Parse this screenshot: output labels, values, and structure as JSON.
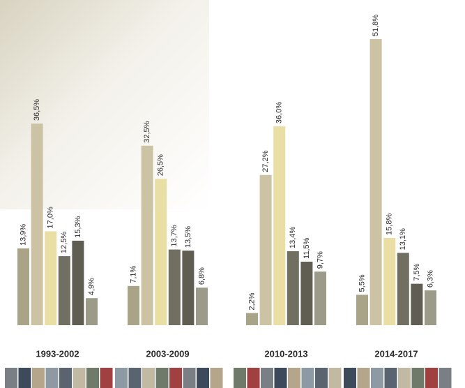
{
  "chart_data": {
    "type": "bar",
    "categories": [
      "1993-2002",
      "2003-2009",
      "2010-2013",
      "2014-2017"
    ],
    "series": [
      {
        "color": "#a9a487",
        "values": [
          13.9,
          7.1,
          2.2,
          5.5
        ],
        "value_labels": [
          "13,9%",
          "7,1%",
          "2,2%",
          "5,5%"
        ]
      },
      {
        "color": "#cbc3a3",
        "values": [
          36.5,
          32.5,
          27.2,
          51.8
        ],
        "value_labels": [
          "36,5%",
          "32,5%",
          "27,2%",
          "51,8%"
        ]
      },
      {
        "color": "#e9dea3",
        "values": [
          17.0,
          26.5,
          36.0,
          15.8
        ],
        "value_labels": [
          "17,0%",
          "26,5%",
          "36,0%",
          "15,8%"
        ]
      },
      {
        "color": "#716f62",
        "values": [
          12.5,
          13.7,
          13.4,
          13.1
        ],
        "value_labels": [
          "12,5%",
          "13,7%",
          "13,4%",
          "13,1%"
        ]
      },
      {
        "color": "#605e53",
        "values": [
          15.3,
          13.5,
          11.5,
          7.5
        ],
        "value_labels": [
          "15,3%",
          "13,5%",
          "11,5%",
          "7,5%"
        ]
      },
      {
        "color": "#9c9a89",
        "values": [
          4.9,
          6.8,
          9.7,
          6.3
        ],
        "value_labels": [
          "4,9%",
          "6,8%",
          "9,7%",
          "6,3%"
        ]
      }
    ]
  }
}
